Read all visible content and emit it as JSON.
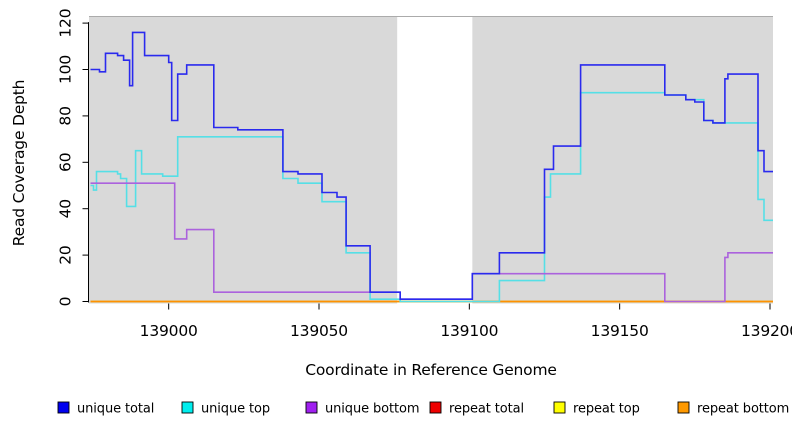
{
  "chart_data": {
    "type": "line",
    "style": "step",
    "title": "",
    "xlabel": "Coordinate in Reference Genome",
    "ylabel": "Read Coverage Depth",
    "xlim": [
      138973.5,
      139201
    ],
    "ylim": [
      0,
      120
    ],
    "x_ticks": [
      139000,
      139050,
      139100,
      139150,
      139200
    ],
    "y_ticks": [
      0,
      20,
      40,
      60,
      80,
      100,
      120
    ],
    "grid": false,
    "legend_position": "bottom",
    "plot_bg_color": "#d9d9d9",
    "gap_region": [
      139076,
      139101
    ],
    "bg_regions": [
      [
        138973.5,
        139076
      ],
      [
        139101,
        139201
      ]
    ],
    "x_end": 139201,
    "draw_order": [
      3,
      4,
      5,
      1,
      2,
      0
    ],
    "series": [
      {
        "name": "unique total",
        "color": "#2a2aee",
        "legend_color": "#0000ee",
        "steps": [
          [
            138974,
            100
          ],
          [
            138977,
            99
          ],
          [
            138979,
            107
          ],
          [
            138983,
            106
          ],
          [
            138985,
            104
          ],
          [
            138987,
            93
          ],
          [
            138988,
            116
          ],
          [
            138992,
            106
          ],
          [
            139000,
            103
          ],
          [
            139001,
            78
          ],
          [
            139003,
            98
          ],
          [
            139006,
            102
          ],
          [
            139015,
            75
          ],
          [
            139023,
            74
          ],
          [
            139038,
            56
          ],
          [
            139043,
            55
          ],
          [
            139051,
            47
          ],
          [
            139056,
            45
          ],
          [
            139059,
            24
          ],
          [
            139067,
            4
          ],
          [
            139077,
            1
          ],
          [
            139101,
            12
          ],
          [
            139110,
            21
          ],
          [
            139125,
            57
          ],
          [
            139128,
            67
          ],
          [
            139137,
            102
          ],
          [
            139165,
            89
          ],
          [
            139172,
            87
          ],
          [
            139175,
            86
          ],
          [
            139178,
            78
          ],
          [
            139181,
            77
          ],
          [
            139185,
            96
          ],
          [
            139186,
            98
          ],
          [
            139196,
            65
          ],
          [
            139198,
            56
          ]
        ]
      },
      {
        "name": "unique top",
        "color": "#55dfe6",
        "legend_color": "#00eeee",
        "steps": [
          [
            138974,
            50
          ],
          [
            138975,
            48
          ],
          [
            138976,
            56
          ],
          [
            138983,
            55
          ],
          [
            138984,
            53
          ],
          [
            138986,
            41
          ],
          [
            138989,
            65
          ],
          [
            138991,
            55
          ],
          [
            138998,
            54
          ],
          [
            139003,
            71
          ],
          [
            139038,
            53
          ],
          [
            139043,
            51
          ],
          [
            139051,
            43
          ],
          [
            139059,
            21
          ],
          [
            139067,
            1
          ],
          [
            139077,
            0
          ],
          [
            139110,
            9
          ],
          [
            139125,
            45
          ],
          [
            139127,
            55
          ],
          [
            139137,
            90
          ],
          [
            139165,
            89
          ],
          [
            139172,
            87
          ],
          [
            139178,
            78
          ],
          [
            139181,
            77
          ],
          [
            139196,
            44
          ],
          [
            139198,
            35
          ]
        ]
      },
      {
        "name": "unique bottom",
        "color": "#ab62dd",
        "legend_color": "#a020f0",
        "steps": [
          [
            138974,
            51
          ],
          [
            139002,
            27
          ],
          [
            139006,
            31
          ],
          [
            139015,
            4
          ],
          [
            139077,
            1
          ],
          [
            139101,
            12
          ],
          [
            139165,
            0
          ],
          [
            139185,
            19
          ],
          [
            139186,
            21
          ]
        ]
      },
      {
        "name": "repeat total",
        "color": "#ee2222",
        "legend_color": "#ee0000",
        "steps": [
          [
            138974,
            0
          ]
        ]
      },
      {
        "name": "repeat top",
        "color": "#f0f000",
        "legend_color": "#ffff00",
        "steps": [
          [
            138974,
            0
          ]
        ]
      },
      {
        "name": "repeat bottom",
        "color": "#ff9100",
        "legend_color": "#ff9900",
        "steps": [
          [
            138974,
            0
          ]
        ]
      }
    ]
  }
}
